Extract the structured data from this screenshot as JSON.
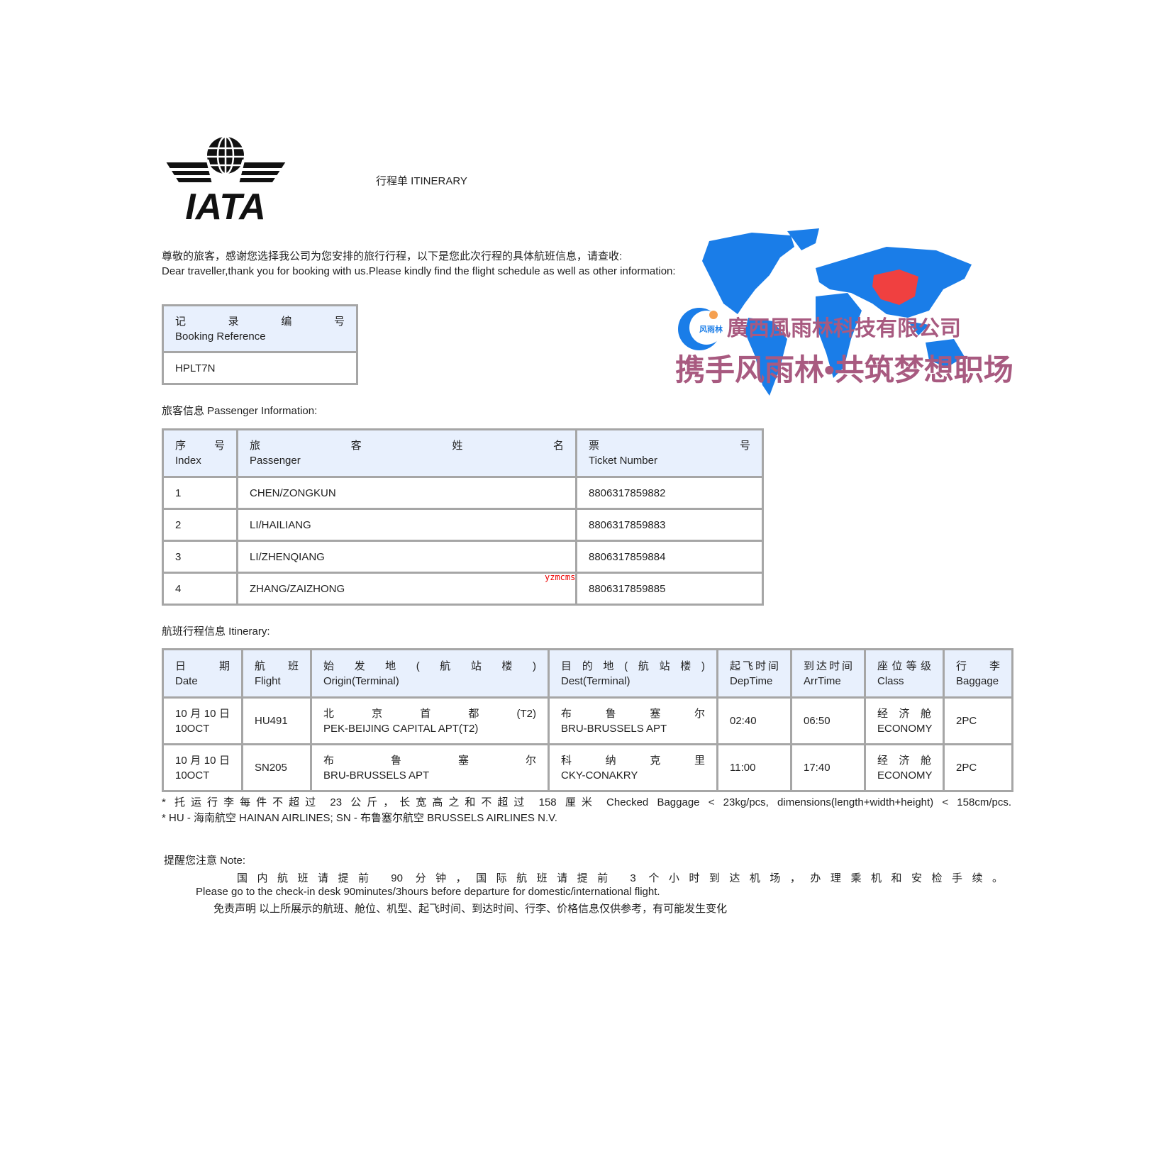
{
  "logo": {
    "text": "IATA"
  },
  "title": "行程单 ITINERARY",
  "greeting": {
    "cn": "尊敬的旅客，感谢您选择我公司为您安排的旅行行程，以下是您此次行程的具体航班信息，请查收:",
    "en": "Dear traveller,thank you for booking with us.Please kindly find the flight schedule as well as other information:"
  },
  "banner": {
    "company": "廣西風雨林科技有限公司",
    "slogan": "携手风雨林•共筑梦想职场",
    "logo_text": "风雨林",
    "colors": {
      "map": "#1a7de8",
      "china": "#f04040",
      "text": "#a85a80"
    }
  },
  "booking": {
    "label_cn": "记录编号",
    "label_en": "Booking Reference",
    "value": "HPLT7N"
  },
  "passenger_section": "旅客信息 Passenger Information:",
  "passengers": {
    "headers": [
      {
        "cn": "序号",
        "en": "Index"
      },
      {
        "cn": "旅客姓名",
        "en": "Passenger"
      },
      {
        "cn": "票号",
        "en": "Ticket Number"
      }
    ],
    "rows": [
      {
        "index": "1",
        "name": "CHEN/ZONGKUN",
        "ticket": "8806317859882"
      },
      {
        "index": "2",
        "name": "LI/HAILIANG",
        "ticket": "8806317859883"
      },
      {
        "index": "3",
        "name": "LI/ZHENQIANG",
        "ticket": "8806317859884"
      },
      {
        "index": "4",
        "name": "ZHANG/ZAIZHONG",
        "ticket": "8806317859885"
      }
    ]
  },
  "watermark": "yzmcms",
  "itinerary_section": "航班行程信息 Itinerary:",
  "itinerary": {
    "headers": [
      {
        "cn": "日期",
        "en": "Date"
      },
      {
        "cn": "航班",
        "en": "Flight"
      },
      {
        "cn": "始发地(航站楼)",
        "en": "Origin(Terminal)"
      },
      {
        "cn": "目的地(航站楼)",
        "en": "Dest(Terminal)"
      },
      {
        "cn": "起飞时间",
        "en": "DepTime"
      },
      {
        "cn": "到达时间",
        "en": "ArrTime"
      },
      {
        "cn": "座位等级",
        "en": "Class"
      },
      {
        "cn": "行李",
        "en": "Baggage"
      }
    ],
    "rows": [
      {
        "date_cn": "10月10日",
        "date_en": "10OCT",
        "flight": "HU491",
        "origin_cn": "北京首都(T2)",
        "origin_en": "PEK-BEIJING CAPITAL APT(T2)",
        "dest_cn": "布鲁塞尔",
        "dest_en": "BRU-BRUSSELS APT",
        "dep": "02:40",
        "arr": "06:50",
        "class_cn": "经济舱",
        "class_en": "ECONOMY",
        "baggage": "2PC"
      },
      {
        "date_cn": "10月10日",
        "date_en": "10OCT",
        "flight": "SN205",
        "origin_cn": "布鲁塞尔",
        "origin_en": "BRU-BRUSSELS APT",
        "dest_cn": "科纳克里",
        "dest_en": "CKY-CONAKRY",
        "dep": "11:00",
        "arr": "17:40",
        "class_cn": "经济舱",
        "class_en": "ECONOMY",
        "baggage": "2PC"
      }
    ]
  },
  "footnotes": [
    "* 托运行李每件不超过 23 公斤，长宽高之和不超过 158 厘米 Checked Baggage < 23kg/pcs, dimensions(length+width+height) < 158cm/pcs.",
    "* HU - 海南航空 HAINAN AIRLINES; SN - 布鲁塞尔航空 BRUSSELS AIRLINES N.V."
  ],
  "note": {
    "label": "提醒您注意 Note:",
    "cn": "国内航班请提前 90 分钟，国际航班请提前 3 个小时到达机场，办理乘机和安检手续。",
    "en": "Please go to the check-in desk 90minutes/3hours before departure for domestic/international flight.",
    "disclaimer": "免责声明 以上所展示的航班、舱位、机型、起飞时间、到达时间、行李、价格信息仅供参考，有可能发生变化"
  }
}
